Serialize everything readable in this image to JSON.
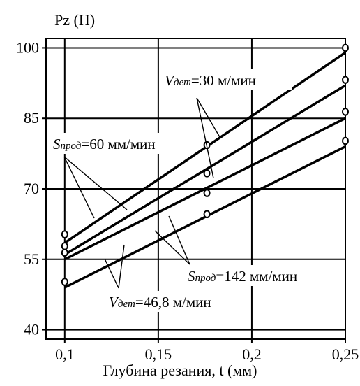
{
  "chart_data": {
    "type": "line",
    "ylabel": "Pz (Н)",
    "xlabel": "Глубина резания, t (мм)",
    "xlim": [
      0.09,
      0.25
    ],
    "ylim": [
      38,
      102
    ],
    "x_ticks": [
      {
        "value": 0.1,
        "label": "0,1"
      },
      {
        "value": 0.15,
        "label": "0,15"
      },
      {
        "value": 0.2,
        "label": "0,2"
      },
      {
        "value": 0.25,
        "label": "0,25"
      }
    ],
    "y_ticks": [
      {
        "value": 40,
        "label": "40"
      },
      {
        "value": 55,
        "label": "55"
      },
      {
        "value": 70,
        "label": "70"
      },
      {
        "value": 85,
        "label": "85"
      },
      {
        "value": 100,
        "label": "100"
      }
    ],
    "grid": true,
    "series": [
      {
        "x": [
          0.1,
          0.25
        ],
        "y": [
          58.5,
          99.0
        ],
        "points": [
          [
            0.1,
            60.3
          ],
          [
            0.176,
            79.3
          ],
          [
            0.25,
            100.0
          ]
        ]
      },
      {
        "x": [
          0.1,
          0.25
        ],
        "y": [
          56.0,
          92.0
        ],
        "points": [
          [
            0.1,
            57.8
          ],
          [
            0.176,
            73.3
          ],
          [
            0.25,
            93.2
          ]
        ]
      },
      {
        "x": [
          0.1,
          0.25
        ],
        "y": [
          55.0,
          85.0
        ],
        "points": [
          [
            0.1,
            56.4
          ],
          [
            0.176,
            69.1
          ],
          [
            0.25,
            86.4
          ]
        ]
      },
      {
        "x": [
          0.1,
          0.25
        ],
        "y": [
          49.0,
          79.0
        ],
        "points": [
          [
            0.1,
            50.2
          ],
          [
            0.176,
            64.6
          ],
          [
            0.25,
            80.2
          ]
        ]
      }
    ],
    "annotations": [
      {
        "var": "V",
        "sub": "дет",
        "text": "=30 м/мин"
      },
      {
        "var": "S",
        "sub": "прод",
        "text": "=60 мм/мин"
      },
      {
        "var": "S",
        "sub": "прод",
        "text": "=142 мм/мин"
      },
      {
        "var": "V",
        "sub": "дет",
        "text": "=46,8 м/мин"
      }
    ]
  }
}
